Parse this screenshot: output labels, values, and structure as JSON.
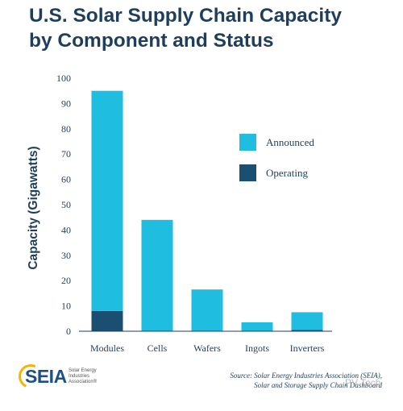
{
  "chart_data": {
    "type": "bar",
    "stacked": true,
    "title_line1": "U.S. Solar Supply Chain Capacity",
    "title_line2": "by Component and Status",
    "ylabel": "Capacity (Gigawatts)",
    "xlabel": "",
    "ylim": [
      0,
      100
    ],
    "yticks": [
      0,
      10,
      20,
      30,
      40,
      50,
      60,
      70,
      80,
      90,
      100
    ],
    "grid": false,
    "legend_position": "right",
    "categories": [
      "Modules",
      "Cells",
      "Wafers",
      "Ingots",
      "Inverters"
    ],
    "series": [
      {
        "name": "Operating",
        "color": "#1a4f72",
        "values": [
          8,
          0,
          0,
          0,
          0.5
        ]
      },
      {
        "name": "Announced",
        "color": "#1fbde0",
        "values": [
          87,
          44,
          16.5,
          3.5,
          7
        ]
      }
    ],
    "source_line1": "Source: Solar Energy Industries Association (SEIA),",
    "source_line2": "Solar and Storage Supply Chain Dashboard"
  },
  "legend": [
    {
      "label": "Announced",
      "color": "#1fbde0"
    },
    {
      "label": "Operating",
      "color": "#1a4f72"
    }
  ],
  "logo": {
    "text": "SEIA",
    "tagline_line1": "Solar Energy",
    "tagline_line2": "Industries",
    "tagline_line3": "Association®"
  },
  "watermark": "PV Tech"
}
